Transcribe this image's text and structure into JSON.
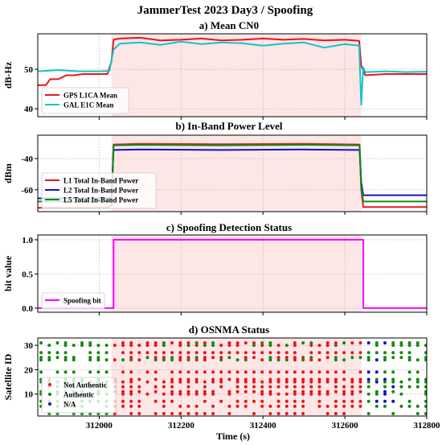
{
  "figure": {
    "title": "JammerTest 2023 Day3 / Spoofing",
    "xlabel": "Time (s)",
    "xlim": [
      311850,
      312800
    ],
    "xticks": [
      312000,
      312200,
      312400,
      312600,
      312800
    ],
    "xticklabels": [
      "312000",
      "312200",
      "312400",
      "312600",
      "312800"
    ],
    "spoof_span": [
      312030,
      312640
    ]
  },
  "colors": {
    "red": "#e8161b",
    "cyan": "#10c4c6",
    "blue": "#1111cc",
    "green": "#138a13",
    "magenta": "#ff00ff",
    "span": "#fde6e6"
  },
  "chart_data": [
    {
      "type": "line",
      "title": "a) Mean CN0",
      "ylabel": "dB-Hz",
      "ylim": [
        38,
        59
      ],
      "yticks": [
        40,
        50
      ],
      "legend": "bottom-left",
      "series": [
        {
          "name": "GPS L1CA Mean",
          "color": "red",
          "x": [
            311850,
            311870,
            311880,
            311900,
            311920,
            311940,
            311960,
            311990,
            312020,
            312030,
            312035,
            312050,
            312100,
            312150,
            312200,
            312250,
            312300,
            312350,
            312400,
            312450,
            312500,
            312550,
            312600,
            312635,
            312640,
            312650,
            312700,
            312750,
            312800
          ],
          "y": [
            46,
            46,
            47.5,
            47.5,
            48.5,
            48.5,
            48.8,
            48.8,
            48.8,
            52,
            57.5,
            57.8,
            58,
            57.3,
            57.5,
            57.8,
            57.3,
            57.5,
            57.8,
            57.5,
            57.7,
            57.3,
            57.5,
            57.2,
            51,
            48.5,
            48.8,
            48.8,
            48.8
          ]
        },
        {
          "name": "GAL E1C Mean",
          "color": "cyan",
          "x": [
            311850,
            311900,
            311950,
            312000,
            312025,
            312035,
            312050,
            312100,
            312150,
            312200,
            312250,
            312300,
            312350,
            312400,
            312450,
            312500,
            312550,
            312600,
            312635,
            312640,
            312645,
            312650,
            312700,
            312750,
            312800
          ],
          "y": [
            49.5,
            49.8,
            49.5,
            49.5,
            49.6,
            55,
            56.5,
            56.8,
            56.2,
            57,
            56.4,
            56.8,
            56.6,
            56,
            56.5,
            56.8,
            55.5,
            56.4,
            56,
            41,
            50.5,
            49.3,
            49.5,
            49.3,
            49.4
          ]
        }
      ]
    },
    {
      "type": "line",
      "title": "b) In-Band Power Level",
      "ylabel": "dBm",
      "ylim": [
        -74,
        -25
      ],
      "yticks": [
        -40,
        -60
      ],
      "legend": "bottom-left",
      "series": [
        {
          "name": "L1 Total In-Band Power",
          "color": "red",
          "x": [
            311850,
            312020,
            312030,
            312035,
            312100,
            312300,
            312500,
            312636,
            312640,
            312645,
            312800
          ],
          "y": [
            -71.5,
            -71.5,
            -70,
            -31,
            -30.5,
            -30.8,
            -30.5,
            -31,
            -60,
            -71,
            -71
          ]
        },
        {
          "name": "L2 Total In-Band Power",
          "color": "blue",
          "x": [
            311850,
            312020,
            312030,
            312035,
            312100,
            312300,
            312500,
            312636,
            312640,
            312645,
            312800
          ],
          "y": [
            -65.5,
            -65.5,
            -65,
            -34.5,
            -34.2,
            -34.5,
            -34.2,
            -34.5,
            -55,
            -63.5,
            -63.5
          ]
        },
        {
          "name": "L5 Total In-Band Power",
          "color": "green",
          "x": [
            311850,
            312020,
            312030,
            312035,
            312100,
            312300,
            312500,
            312636,
            312640,
            312645,
            312800
          ],
          "y": [
            -67.5,
            -67.5,
            -67,
            -31.5,
            -31.2,
            -31.5,
            -31.2,
            -31.5,
            -58,
            -67.5,
            -67.5
          ]
        }
      ]
    },
    {
      "type": "line",
      "title": "c) Spoofing Detection Status",
      "ylabel": "bit value",
      "ylim": [
        -0.06,
        1.07
      ],
      "yticks": [
        0.0,
        0.5,
        1.0
      ],
      "yticklabels": [
        "0.0",
        "0.5",
        "1.0"
      ],
      "legend": "bottom-left",
      "series": [
        {
          "name": "Spoofing bit",
          "color": "magenta",
          "x": [
            311850,
            312035,
            312035,
            312645,
            312645,
            312800
          ],
          "y": [
            0,
            0,
            1,
            1,
            0,
            0
          ]
        }
      ]
    },
    {
      "type": "scatter",
      "title": "d) OSNMA Status",
      "ylabel": "Satellite ID",
      "ylim": [
        1,
        33
      ],
      "yticks": [
        10,
        20,
        30
      ],
      "legend": "bottom-left",
      "series": [
        {
          "name": "Not Authentic",
          "color": "red"
        },
        {
          "name": "Authentic",
          "color": "green"
        },
        {
          "name": "N/A",
          "color": "blue"
        }
      ],
      "sats": [
        2,
        5,
        7,
        10,
        11,
        13,
        15,
        16,
        19,
        24,
        25,
        27,
        30,
        31
      ]
    }
  ]
}
